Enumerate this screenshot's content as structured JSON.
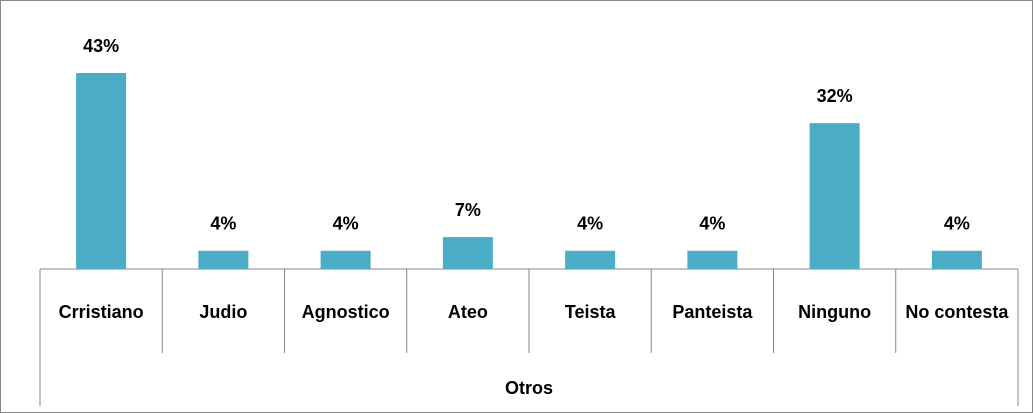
{
  "chart_data": {
    "type": "bar",
    "group": "Otros",
    "categories": [
      "Crristiano",
      "Judio",
      "Agnostico",
      "Ateo",
      "Teista",
      "Panteista",
      "Ninguno",
      "No contesta"
    ],
    "values": [
      43,
      4,
      4,
      7,
      4,
      4,
      32,
      4
    ],
    "value_labels": [
      "43%",
      "4%",
      "4%",
      "7%",
      "4%",
      "4%",
      "32%",
      "4%"
    ],
    "color": "#4bacc6"
  }
}
